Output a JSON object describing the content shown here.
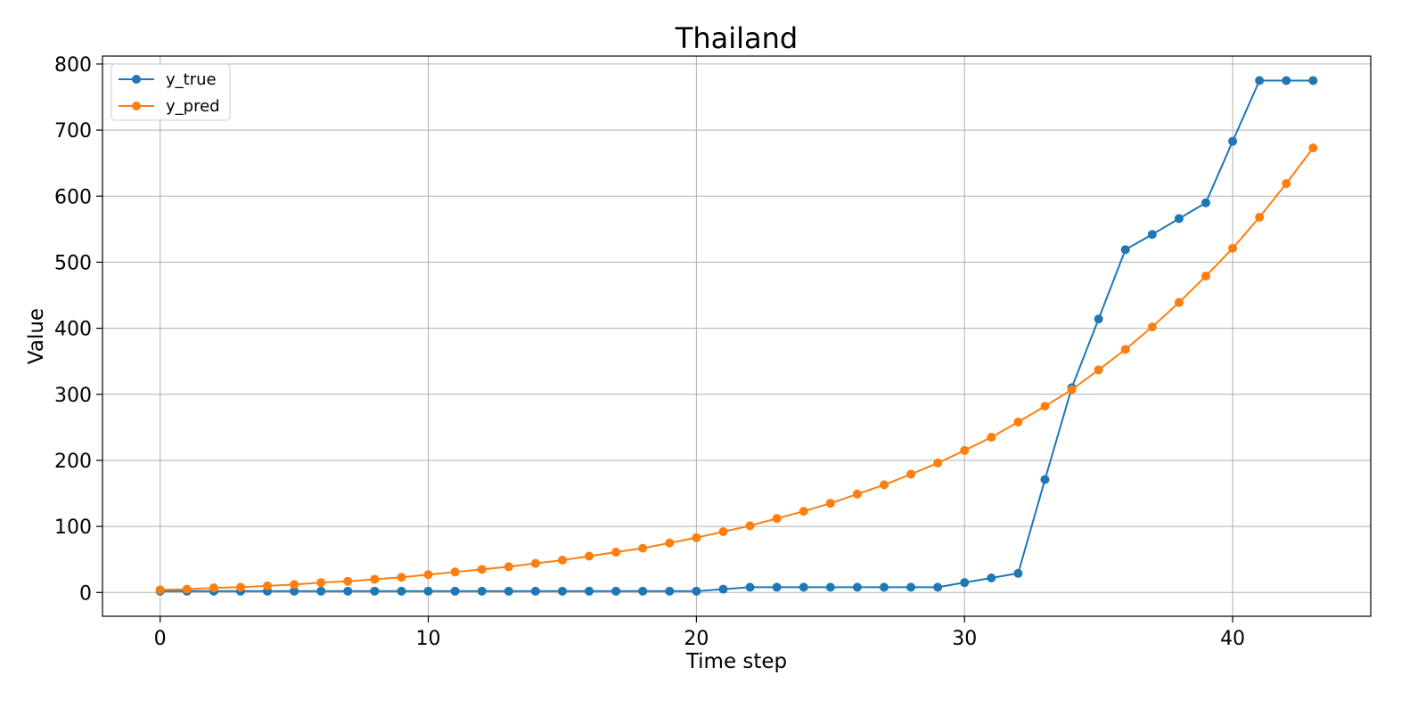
{
  "chart_data": {
    "type": "line",
    "title": "Thailand",
    "xlabel": "Time step",
    "ylabel": "Value",
    "xlim": [
      -2.15,
      45.15
    ],
    "ylim": [
      -36,
      812
    ],
    "xticks": [
      0,
      10,
      20,
      30,
      40
    ],
    "yticks": [
      0,
      100,
      200,
      300,
      400,
      500,
      600,
      700,
      800
    ],
    "grid": true,
    "legend_position": "top-left",
    "x": [
      0,
      1,
      2,
      3,
      4,
      5,
      6,
      7,
      8,
      9,
      10,
      11,
      12,
      13,
      14,
      15,
      16,
      17,
      18,
      19,
      20,
      21,
      22,
      23,
      24,
      25,
      26,
      27,
      28,
      29,
      30,
      31,
      32,
      33,
      34,
      35,
      36,
      37,
      38,
      39,
      40,
      41,
      42,
      43
    ],
    "series": [
      {
        "name": "y_true",
        "color": "#1f77b4",
        "values": [
          2,
          2,
          2,
          2,
          2,
          2,
          2,
          2,
          2,
          2,
          2,
          2,
          2,
          2,
          2,
          2,
          2,
          2,
          2,
          2,
          2,
          5,
          8,
          8,
          8,
          8,
          8,
          8,
          8,
          8,
          15,
          22,
          29,
          171,
          310,
          414,
          519,
          542,
          566,
          590,
          683,
          775,
          775,
          775
        ]
      },
      {
        "name": "y_pred",
        "color": "#ff7f0e",
        "values": [
          4,
          5,
          7,
          8,
          10,
          12,
          15,
          17,
          20,
          23,
          27,
          31,
          35,
          39,
          44,
          49,
          55,
          61,
          67,
          75,
          83,
          92,
          101,
          112,
          123,
          135,
          149,
          163,
          179,
          196,
          215,
          235,
          258,
          282,
          307,
          337,
          368,
          402,
          439,
          479,
          521,
          568,
          619,
          673
        ]
      }
    ]
  }
}
